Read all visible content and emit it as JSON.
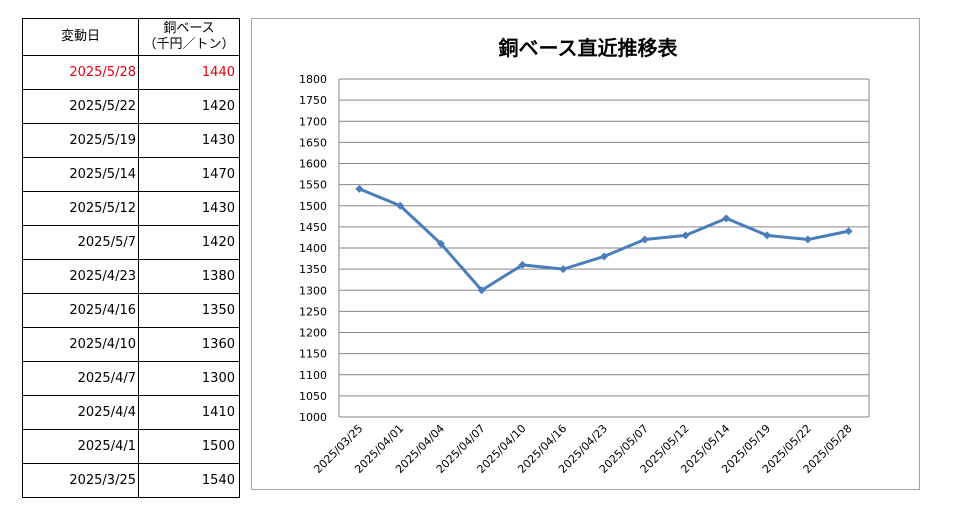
{
  "table": {
    "header_date": "変動日",
    "header_value_line1": "銅ベース",
    "header_value_line2": "（千円／トン）",
    "rows": [
      {
        "date": "2025/5/28",
        "value": "1440",
        "highlight": true
      },
      {
        "date": "2025/5/22",
        "value": "1420"
      },
      {
        "date": "2025/5/19",
        "value": "1430"
      },
      {
        "date": "2025/5/14",
        "value": "1470"
      },
      {
        "date": "2025/5/12",
        "value": "1430"
      },
      {
        "date": "2025/5/7",
        "value": "1420"
      },
      {
        "date": "2025/4/23",
        "value": "1380"
      },
      {
        "date": "2025/4/16",
        "value": "1350"
      },
      {
        "date": "2025/4/10",
        "value": "1360"
      },
      {
        "date": "2025/4/7",
        "value": "1300"
      },
      {
        "date": "2025/4/4",
        "value": "1410"
      },
      {
        "date": "2025/4/1",
        "value": "1500"
      },
      {
        "date": "2025/3/25",
        "value": "1540"
      }
    ],
    "highlight_color": "#e60012"
  },
  "chart_data": {
    "type": "line",
    "title": "銅ベース直近推移表",
    "categories": [
      "2025/03/25",
      "2025/04/01",
      "2025/04/04",
      "2025/04/07",
      "2025/04/10",
      "2025/04/16",
      "2025/04/23",
      "2025/05/07",
      "2025/05/12",
      "2025/05/14",
      "2025/05/19",
      "2025/05/22",
      "2025/05/28"
    ],
    "series": [
      {
        "values": [
          1540,
          1500,
          1410,
          1300,
          1360,
          1350,
          1380,
          1420,
          1430,
          1470,
          1430,
          1420,
          1440
        ],
        "color": "#4a7ebb"
      }
    ],
    "ylim": [
      1000,
      1800
    ],
    "ytick_step": 50,
    "grid": true,
    "legend": "none"
  }
}
